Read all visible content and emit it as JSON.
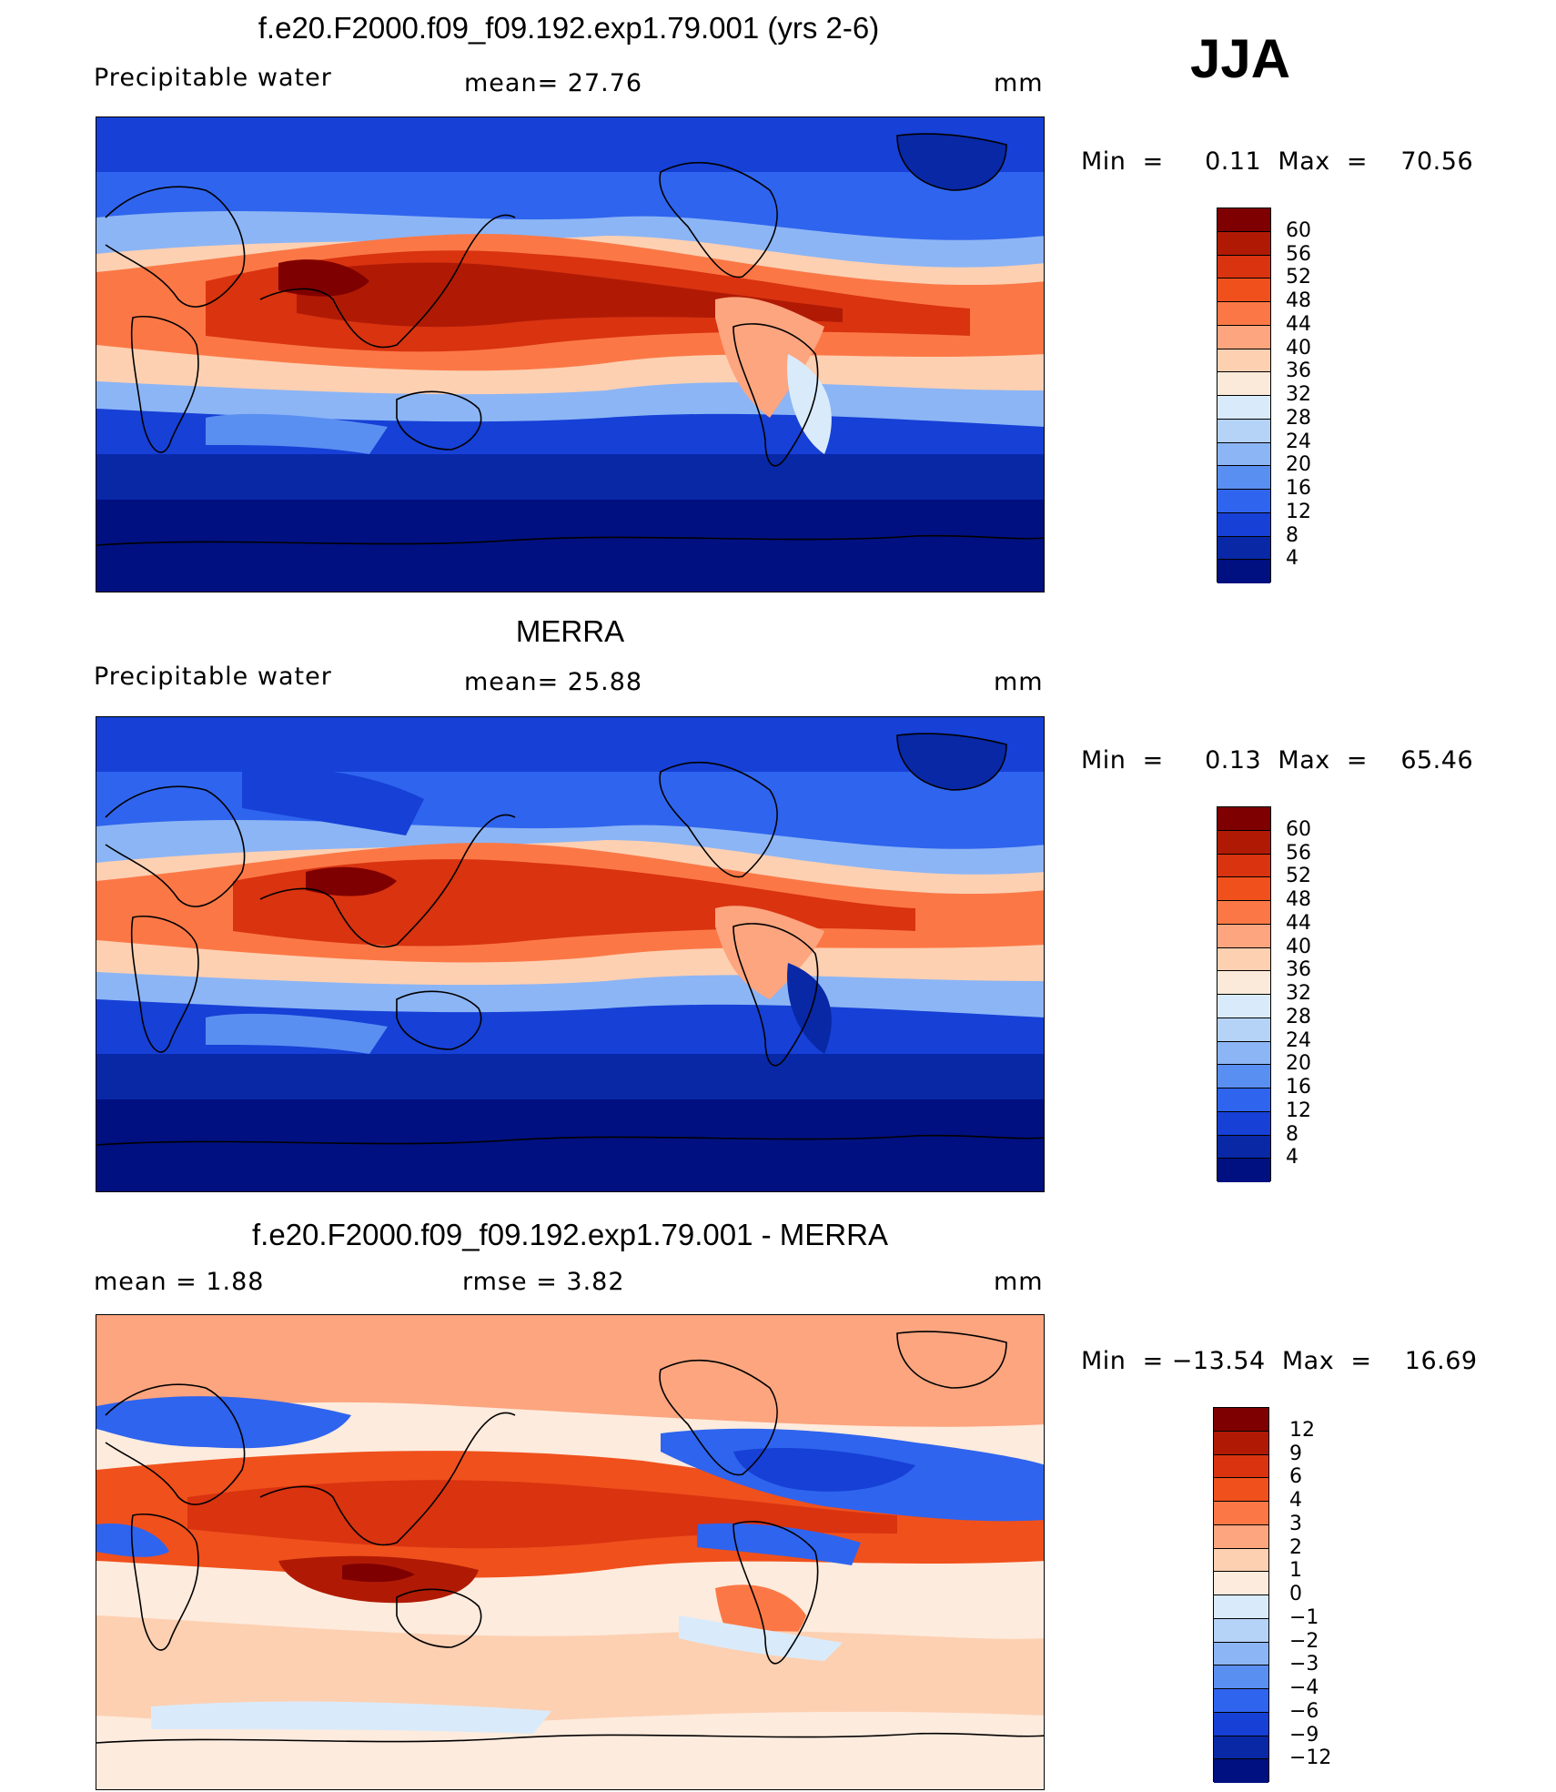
{
  "season": "JJA",
  "panels": [
    {
      "id": "model",
      "title": "f.e20.F2000.f09_f09.192.exp1.79.001 (yrs 2-6)",
      "left_label": "Precipitable  water",
      "mid_label": "mean=   27.76",
      "units": "mm",
      "min_max": "Min  =     0.11  Max  =    70.56",
      "colorbar": {
        "labels": [
          "60",
          "56",
          "52",
          "48",
          "44",
          "40",
          "36",
          "32",
          "28",
          "24",
          "20",
          "16",
          "12",
          "8",
          "4"
        ],
        "colors": [
          "#7f0000",
          "#b01a05",
          "#d93310",
          "#f0501c",
          "#fb7846",
          "#fca57f",
          "#fdd0b2",
          "#fbead9",
          "#d9ebfb",
          "#b5d2f7",
          "#8cb5f5",
          "#5a8ff2",
          "#2f64ee",
          "#1640d6",
          "#0828a6",
          "#001080"
        ]
      },
      "map_field": "precipitable-water-model"
    },
    {
      "id": "obs",
      "title": "MERRA",
      "left_label": "Precipitable  water",
      "mid_label": "mean=   25.88",
      "units": "mm",
      "min_max": "Min  =     0.13  Max  =    65.46",
      "colorbar": {
        "labels": [
          "60",
          "56",
          "52",
          "48",
          "44",
          "40",
          "36",
          "32",
          "28",
          "24",
          "20",
          "16",
          "12",
          "8",
          "4"
        ],
        "colors": [
          "#7f0000",
          "#b01a05",
          "#d93310",
          "#f0501c",
          "#fb7846",
          "#fca57f",
          "#fdd0b2",
          "#fbead9",
          "#d9ebfb",
          "#b5d2f7",
          "#8cb5f5",
          "#5a8ff2",
          "#2f64ee",
          "#1640d6",
          "#0828a6",
          "#001080"
        ]
      },
      "map_field": "precipitable-water-merra"
    },
    {
      "id": "diff",
      "title": "f.e20.F2000.f09_f09.192.exp1.79.001 - MERRA",
      "left_label": "mean  =     1.88",
      "mid_label": "rmse  =     3.82",
      "units": "mm",
      "min_max": "Min  = −13.54  Max  =    16.69",
      "colorbar": {
        "labels": [
          "12",
          "9",
          "6",
          "4",
          "3",
          "2",
          "1",
          "0",
          "−1",
          "−2",
          "−3",
          "−4",
          "−6",
          "−9",
          "−12"
        ],
        "colors": [
          "#7f0000",
          "#b01a05",
          "#d93310",
          "#f0501c",
          "#fb7846",
          "#fca57f",
          "#fdd0b2",
          "#fdebdd",
          "#d9ebfb",
          "#b5d2f7",
          "#8cb5f5",
          "#5a8ff2",
          "#2f64ee",
          "#1640d6",
          "#0828a6",
          "#001080"
        ]
      },
      "map_field": "precipitable-water-difference"
    }
  ]
}
